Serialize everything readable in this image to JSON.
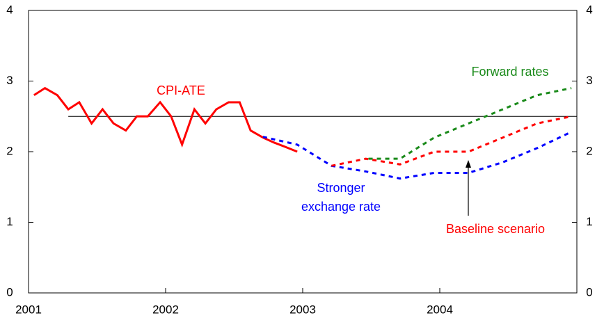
{
  "chart_data": {
    "type": "line",
    "xlim": [
      2001,
      2005
    ],
    "xticks": [
      2001,
      2002,
      2003,
      2004
    ],
    "ylim": [
      0,
      4
    ],
    "yticks": [
      0,
      1,
      2,
      3,
      4
    ],
    "y2lim": [
      0,
      4
    ],
    "y2ticks": [
      0,
      1,
      2,
      3,
      4
    ],
    "hline": {
      "value": 2.5,
      "from": 2001.29,
      "to": 2005,
      "color": "#000000"
    },
    "series": [
      {
        "name": "CPI-ATE",
        "color": "#ff0000",
        "style": "solid",
        "x": [
          2001.04,
          2001.12,
          2001.21,
          2001.29,
          2001.37,
          2001.46,
          2001.54,
          2001.62,
          2001.71,
          2001.79,
          2001.87,
          2001.96,
          2002.04,
          2002.12,
          2002.21,
          2002.29,
          2002.37,
          2002.46,
          2002.54,
          2002.62,
          2002.71,
          2002.79,
          2002.87,
          2002.96
        ],
        "values": [
          2.8,
          2.9,
          2.8,
          2.6,
          2.7,
          2.4,
          2.6,
          2.4,
          2.3,
          2.5,
          2.5,
          2.7,
          2.5,
          2.1,
          2.6,
          2.4,
          2.6,
          2.7,
          2.7,
          2.3,
          2.2,
          2.13,
          2.07,
          2.0
        ]
      },
      {
        "name": "Stronger exchange rate",
        "color": "#0000ff",
        "style": "dotted",
        "x": [
          2002.71,
          2002.96,
          2003.21,
          2003.46,
          2003.71,
          2003.96,
          2004.21,
          2004.46,
          2004.71,
          2004.96
        ],
        "values": [
          2.21,
          2.1,
          1.8,
          1.72,
          1.62,
          1.7,
          1.7,
          1.85,
          2.05,
          2.28
        ]
      },
      {
        "name": "Baseline scenario",
        "color": "#ff0000",
        "style": "dotted",
        "x": [
          2003.21,
          2003.46,
          2003.71,
          2003.96,
          2004.21,
          2004.46,
          2004.71,
          2004.96
        ],
        "values": [
          1.8,
          1.9,
          1.82,
          2.0,
          2.0,
          2.2,
          2.4,
          2.5
        ]
      },
      {
        "name": "Forward rates",
        "color": "#1a8a1a",
        "style": "dotted",
        "x": [
          2003.48,
          2003.71,
          2003.96,
          2004.21,
          2004.46,
          2004.71,
          2004.96
        ],
        "values": [
          1.9,
          1.9,
          2.2,
          2.4,
          2.6,
          2.8,
          2.9
        ]
      }
    ]
  }
}
